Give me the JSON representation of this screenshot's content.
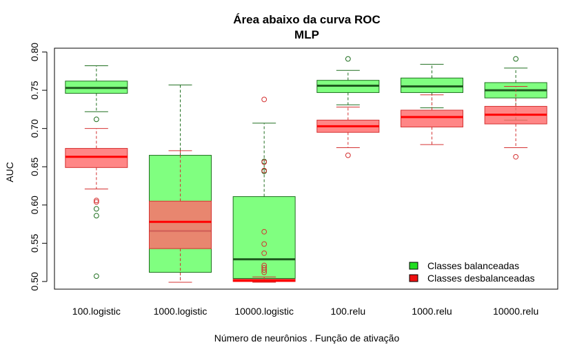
{
  "chart_data": {
    "type": "boxplot",
    "title": "Área abaixo da curva ROC",
    "subtitle": "MLP",
    "xlabel": "Número de neurônios . Função de ativação",
    "ylabel": "AUC",
    "ylim": [
      0.49,
      0.805
    ],
    "yticks": [
      "0.50",
      "0.55",
      "0.60",
      "0.65",
      "0.70",
      "0.75",
      "0.80"
    ],
    "categories": [
      "100.logistic",
      "1000.logistic",
      "10000.logistic",
      "100.relu",
      "1000.relu",
      "10000.relu"
    ],
    "legend": {
      "position": "bottom-right"
    },
    "series": [
      {
        "name": "Classes balanceadas",
        "fill": "#80ff80",
        "border": "#1e6e1e",
        "median_color": "#1e5a1e",
        "legend_fill": "#22dd22",
        "boxes": [
          {
            "whisker_low": 0.722,
            "q1": 0.746,
            "median": 0.753,
            "q3": 0.762,
            "whisker_high": 0.782,
            "outliers": [
              0.712,
              0.595,
              0.586,
              0.507
            ]
          },
          {
            "whisker_low": 0.499,
            "q1": 0.512,
            "median": 0.566,
            "q3": 0.665,
            "whisker_high": 0.757,
            "outliers": []
          },
          {
            "whisker_low": 0.5,
            "q1": 0.504,
            "median": 0.529,
            "q3": 0.611,
            "whisker_high": 0.707,
            "outliers": [
              0.657,
              0.645,
              0.644
            ]
          },
          {
            "whisker_low": 0.731,
            "q1": 0.747,
            "median": 0.756,
            "q3": 0.763,
            "whisker_high": 0.776,
            "outliers": [
              0.791
            ]
          },
          {
            "whisker_low": 0.727,
            "q1": 0.747,
            "median": 0.755,
            "q3": 0.766,
            "whisker_high": 0.784,
            "outliers": []
          },
          {
            "whisker_low": 0.711,
            "q1": 0.74,
            "median": 0.75,
            "q3": 0.76,
            "whisker_high": 0.779,
            "outliers": [
              0.791
            ]
          }
        ]
      },
      {
        "name": "Classes desbalanceadas",
        "fill": "#ff6b6b",
        "fill_opacity": 0.82,
        "border": "#d43030",
        "median_color": "#ff0000",
        "legend_fill": "#ee1111",
        "boxes": [
          {
            "whisker_low": 0.621,
            "q1": 0.649,
            "median": 0.663,
            "q3": 0.674,
            "whisker_high": 0.7,
            "outliers": [
              0.606,
              0.604
            ]
          },
          {
            "whisker_low": 0.499,
            "q1": 0.543,
            "median": 0.578,
            "q3": 0.605,
            "whisker_high": 0.671,
            "outliers": []
          },
          {
            "whisker_low": 0.499,
            "q1": 0.5,
            "median": 0.501,
            "q3": 0.503,
            "whisker_high": 0.506,
            "outliers": [
              0.738,
              0.656,
              0.645,
              0.565,
              0.549,
              0.537,
              0.521,
              0.518,
              0.515,
              0.512
            ]
          },
          {
            "whisker_low": 0.675,
            "q1": 0.695,
            "median": 0.703,
            "q3": 0.711,
            "whisker_high": 0.728,
            "outliers": [
              0.665
            ]
          },
          {
            "whisker_low": 0.679,
            "q1": 0.702,
            "median": 0.715,
            "q3": 0.724,
            "whisker_high": 0.744,
            "outliers": []
          },
          {
            "whisker_low": 0.675,
            "q1": 0.706,
            "median": 0.718,
            "q3": 0.729,
            "whisker_high": 0.755,
            "outliers": [
              0.663
            ]
          }
        ]
      }
    ]
  }
}
